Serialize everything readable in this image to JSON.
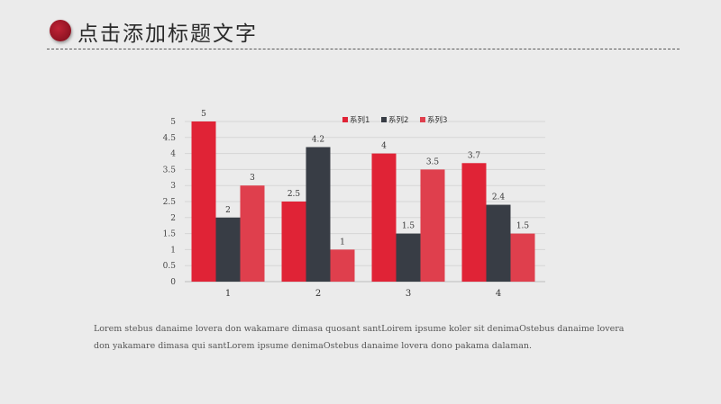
{
  "header": {
    "title": "点击添加标题文字"
  },
  "body_text": "Lorem stebus danaime lovera don wakamare dimasa quosant santLoirem ipsume koler sit denimaOstebus danaime lovera don yakamare dimasa qui santLorem ipsume denimaOstebus danaime lovera dono pakama dalaman.",
  "chart_data": {
    "type": "bar",
    "categories": [
      "1",
      "2",
      "3",
      "4"
    ],
    "series": [
      {
        "name": "系列1",
        "values": [
          5,
          2.5,
          4,
          3.7
        ],
        "labels": [
          "5",
          "2.5",
          "4",
          "3.7"
        ],
        "color": "#e02336"
      },
      {
        "name": "系列2",
        "values": [
          2,
          4.2,
          1.5,
          2.4
        ],
        "labels": [
          "2",
          "4.2",
          "1.5",
          "2.4"
        ],
        "color": "#383d45"
      },
      {
        "name": "系列3",
        "values": [
          3,
          1,
          3.5,
          1.5
        ],
        "labels": [
          "3",
          "1",
          "3.5",
          "1.5"
        ],
        "color": "#df3f4d"
      }
    ],
    "yticks": [
      "0",
      "0.5",
      "1",
      "1.5",
      "2",
      "2.5",
      "3",
      "3.5",
      "4",
      "4.5",
      "5"
    ],
    "ylim": [
      0,
      5
    ],
    "grid": true,
    "legend_position": "top-right"
  }
}
